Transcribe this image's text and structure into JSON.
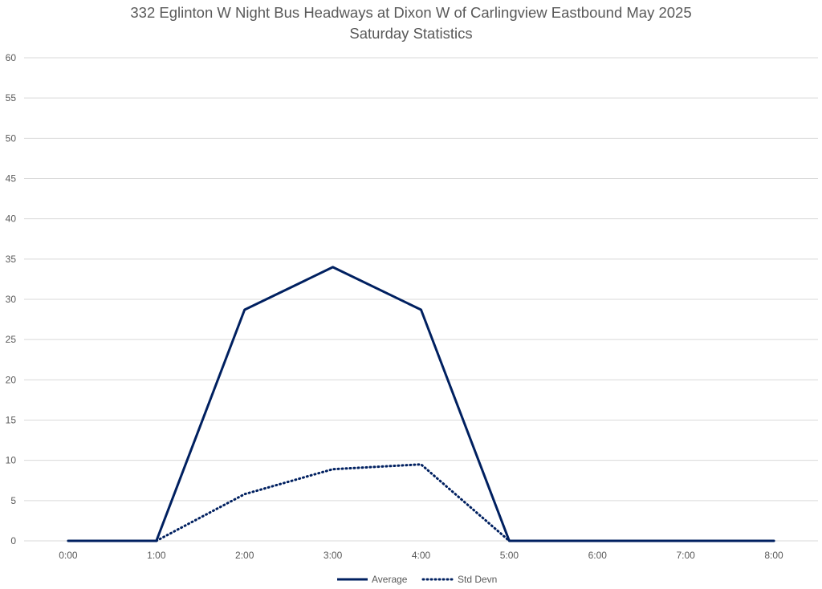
{
  "chart_data": {
    "type": "line",
    "title": "332 Eglinton W Night Bus Headways at Dixon W of Carlingview Eastbound May 2025",
    "subtitle": "Saturday Statistics",
    "xlabel": "",
    "ylabel": "",
    "categories": [
      "0:00",
      "1:00",
      "2:00",
      "3:00",
      "4:00",
      "5:00",
      "6:00",
      "7:00",
      "8:00"
    ],
    "ylim": [
      0,
      60
    ],
    "yticks": [
      0,
      5,
      10,
      15,
      20,
      25,
      30,
      35,
      40,
      45,
      50,
      55,
      60
    ],
    "grid": "horizontal",
    "legend_position": "bottom",
    "series": [
      {
        "name": "Average",
        "style": "solid",
        "color": "#002060",
        "values": [
          0,
          0,
          28.7,
          34.0,
          28.7,
          0,
          0,
          0,
          0
        ]
      },
      {
        "name": "Std Devn",
        "style": "dotted",
        "color": "#002060",
        "values": [
          null,
          0,
          5.8,
          8.9,
          9.5,
          0,
          null,
          null,
          null
        ]
      }
    ]
  }
}
